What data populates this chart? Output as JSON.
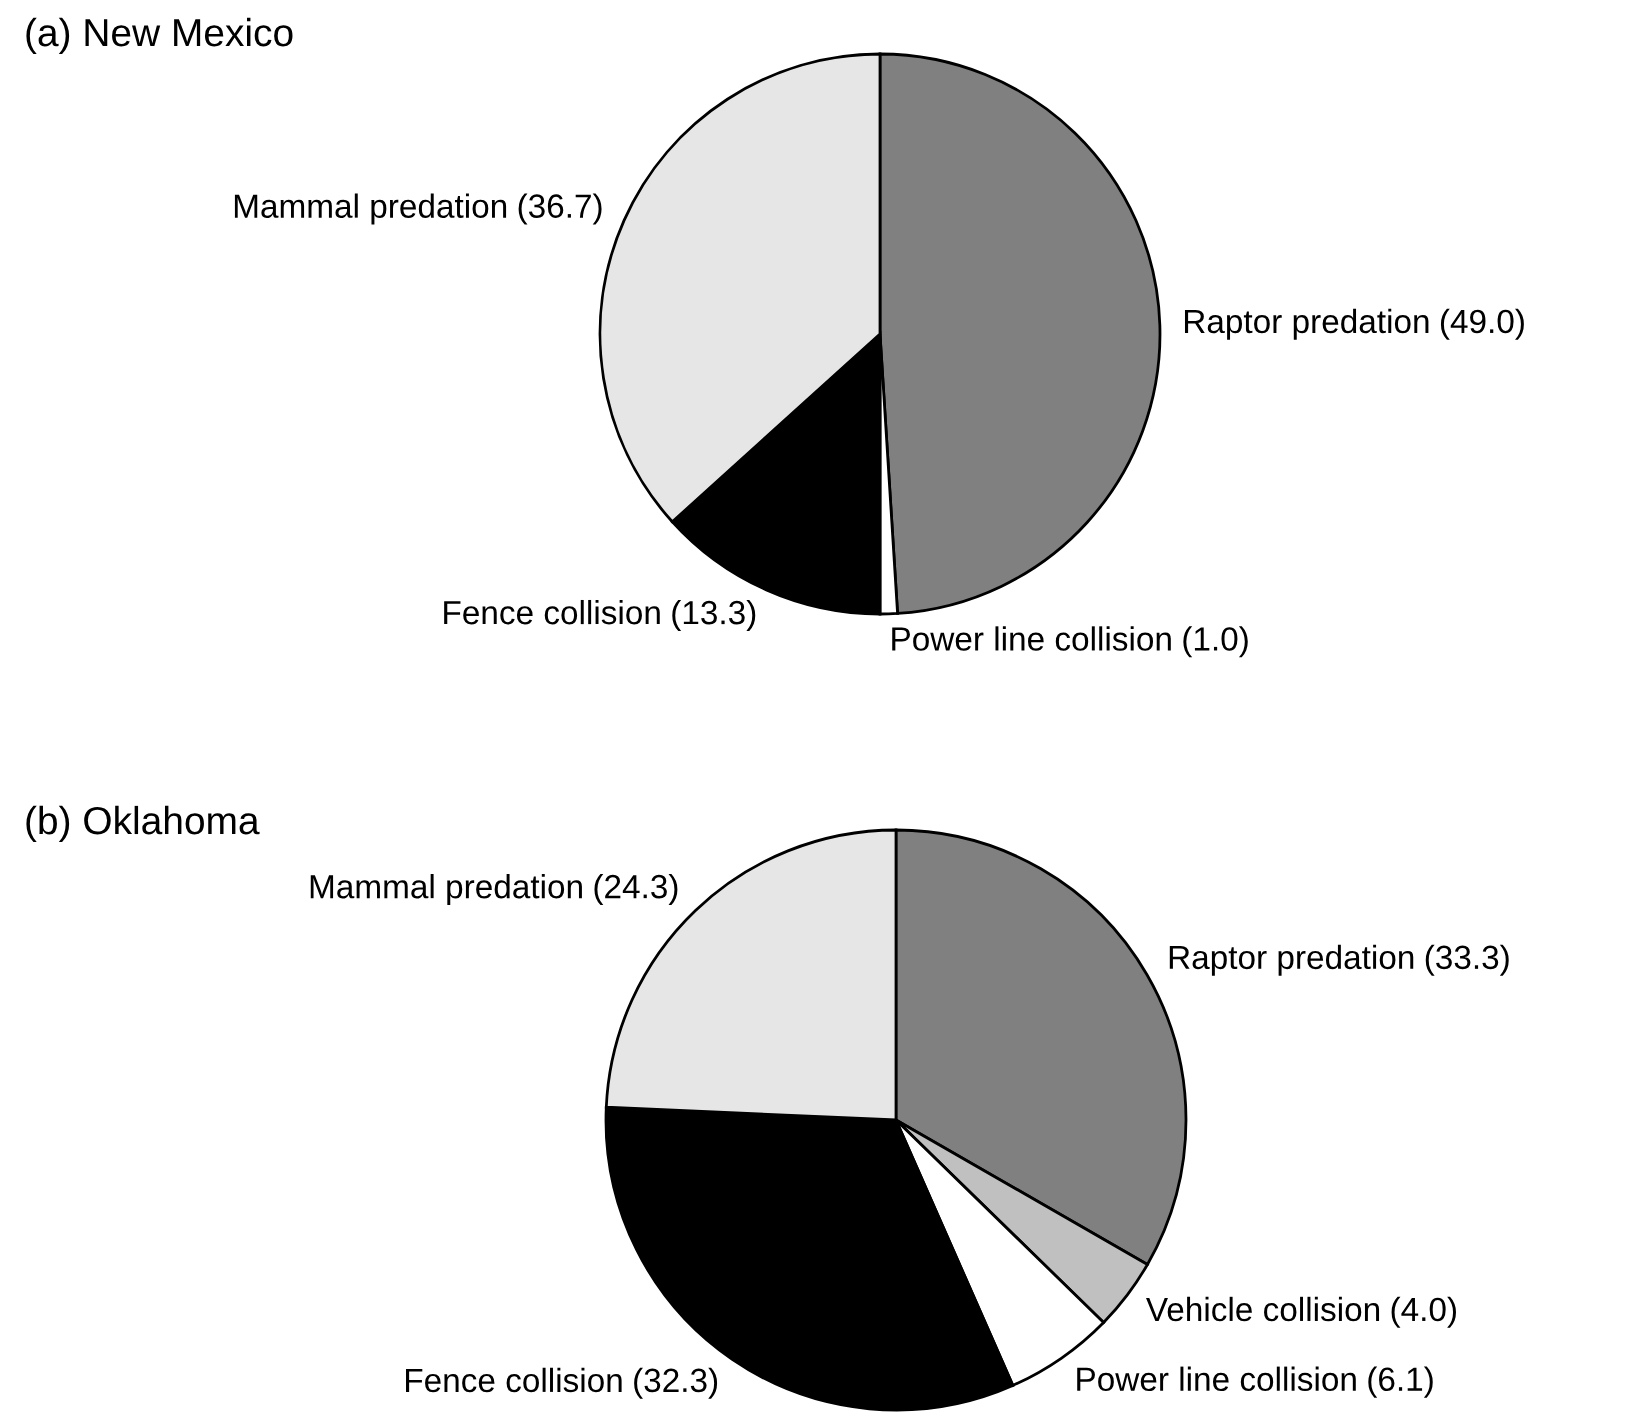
{
  "chart_data": [
    {
      "type": "pie",
      "title": "(a) New Mexico",
      "categories": [
        "Raptor predation",
        "Power line collision",
        "Fence collision",
        "Mammal predation"
      ],
      "values": [
        49.0,
        1.0,
        13.3,
        36.7
      ],
      "colors": [
        "#808080",
        "#ffffff",
        "#000000",
        "#e6e6e6"
      ],
      "value_labels": [
        "(49.0)",
        "(1.0)",
        "(13.3)",
        "(36.7)"
      ],
      "legend": false
    },
    {
      "type": "pie",
      "title": "(b) Oklahoma",
      "categories": [
        "Raptor predation",
        "Vehicle collision",
        "Power line collision",
        "Fence collision",
        "Mammal predation"
      ],
      "values": [
        33.3,
        4.0,
        6.1,
        32.3,
        24.3
      ],
      "colors": [
        "#808080",
        "#c0c0c0",
        "#ffffff",
        "#000000",
        "#e6e6e6"
      ],
      "value_labels": [
        "(33.3)",
        "(4.0)",
        "(6.1)",
        "(32.3)",
        "(24.3)"
      ],
      "legend": false
    }
  ]
}
